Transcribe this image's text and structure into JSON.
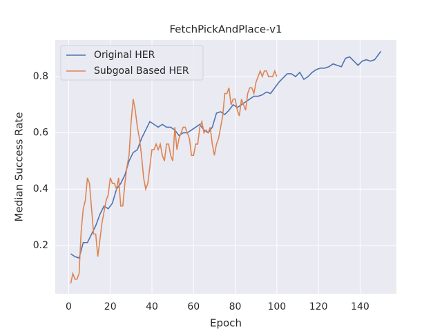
{
  "chart_data": {
    "type": "line",
    "title": "FetchPickAndPlace-v1",
    "x_label": "Epoch",
    "y_label": "Median Success Rate",
    "xlim": [
      -6.45,
      157.45
    ],
    "ylim": [
      0.028,
      0.93
    ],
    "xticks": [
      0,
      20,
      40,
      60,
      80,
      100,
      120,
      140
    ],
    "yticks": [
      0.2,
      0.4,
      0.6,
      0.8
    ],
    "grid": true,
    "legend": "upper-left",
    "series": [
      {
        "name": "Original HER",
        "color": "#4c72b0",
        "x": [
          1,
          3,
          5,
          7,
          9,
          11,
          13,
          15,
          17,
          19,
          21,
          23,
          25,
          27,
          29,
          31,
          33,
          35,
          37,
          39,
          41,
          43,
          45,
          47,
          49,
          51,
          53,
          55,
          57,
          59,
          61,
          63,
          65,
          67,
          69,
          71,
          73,
          75,
          77,
          79,
          81,
          83,
          85,
          87,
          89,
          91,
          93,
          95,
          97,
          99,
          101,
          103,
          105,
          107,
          109,
          111,
          113,
          115,
          117,
          119,
          121,
          123,
          125,
          127,
          129,
          131,
          133,
          135,
          137,
          139,
          141,
          143,
          145,
          147,
          149,
          150
        ],
        "values": [
          0.17,
          0.16,
          0.155,
          0.21,
          0.21,
          0.24,
          0.27,
          0.31,
          0.34,
          0.33,
          0.35,
          0.4,
          0.42,
          0.45,
          0.5,
          0.53,
          0.54,
          0.58,
          0.61,
          0.64,
          0.63,
          0.62,
          0.63,
          0.62,
          0.62,
          0.61,
          0.59,
          0.6,
          0.6,
          0.61,
          0.62,
          0.63,
          0.61,
          0.6,
          0.62,
          0.67,
          0.675,
          0.665,
          0.68,
          0.7,
          0.69,
          0.7,
          0.71,
          0.72,
          0.73,
          0.73,
          0.735,
          0.745,
          0.74,
          0.76,
          0.78,
          0.795,
          0.81,
          0.81,
          0.8,
          0.815,
          0.79,
          0.8,
          0.815,
          0.825,
          0.83,
          0.83,
          0.835,
          0.845,
          0.84,
          0.835,
          0.865,
          0.87,
          0.855,
          0.84,
          0.855,
          0.86,
          0.855,
          0.86,
          0.88,
          0.89
        ]
      },
      {
        "name": "Subgoal Based HER",
        "color": "#dd8452",
        "x": [
          1,
          2,
          3,
          4,
          5,
          6,
          7,
          8,
          9,
          10,
          11,
          12,
          13,
          14,
          15,
          16,
          17,
          18,
          19,
          20,
          21,
          22,
          23,
          24,
          25,
          26,
          27,
          28,
          29,
          30,
          31,
          32,
          33,
          34,
          35,
          36,
          37,
          38,
          39,
          40,
          41,
          42,
          43,
          44,
          45,
          46,
          47,
          48,
          49,
          50,
          51,
          52,
          53,
          54,
          55,
          56,
          57,
          58,
          59,
          60,
          61,
          62,
          63,
          64,
          65,
          66,
          67,
          68,
          69,
          70,
          71,
          72,
          73,
          74,
          75,
          76,
          77,
          78,
          79,
          80,
          81,
          82,
          83,
          84,
          85,
          86,
          87,
          88,
          89,
          90,
          91,
          92,
          93,
          94,
          95,
          96,
          97,
          98,
          99,
          100
        ],
        "values": [
          0.065,
          0.1,
          0.08,
          0.08,
          0.1,
          0.25,
          0.33,
          0.36,
          0.44,
          0.42,
          0.33,
          0.24,
          0.24,
          0.16,
          0.22,
          0.28,
          0.32,
          0.36,
          0.38,
          0.44,
          0.42,
          0.42,
          0.4,
          0.44,
          0.34,
          0.34,
          0.42,
          0.48,
          0.52,
          0.64,
          0.72,
          0.68,
          0.62,
          0.58,
          0.52,
          0.44,
          0.4,
          0.42,
          0.48,
          0.54,
          0.54,
          0.56,
          0.54,
          0.56,
          0.52,
          0.5,
          0.56,
          0.56,
          0.52,
          0.5,
          0.62,
          0.54,
          0.58,
          0.6,
          0.62,
          0.62,
          0.6,
          0.58,
          0.52,
          0.52,
          0.56,
          0.56,
          0.62,
          0.64,
          0.6,
          0.61,
          0.6,
          0.62,
          0.56,
          0.52,
          0.56,
          0.58,
          0.62,
          0.66,
          0.74,
          0.74,
          0.76,
          0.7,
          0.72,
          0.72,
          0.68,
          0.66,
          0.72,
          0.7,
          0.68,
          0.74,
          0.76,
          0.76,
          0.74,
          0.78,
          0.8,
          0.82,
          0.8,
          0.82,
          0.82,
          0.8,
          0.8,
          0.8,
          0.82,
          0.8
        ]
      }
    ]
  }
}
